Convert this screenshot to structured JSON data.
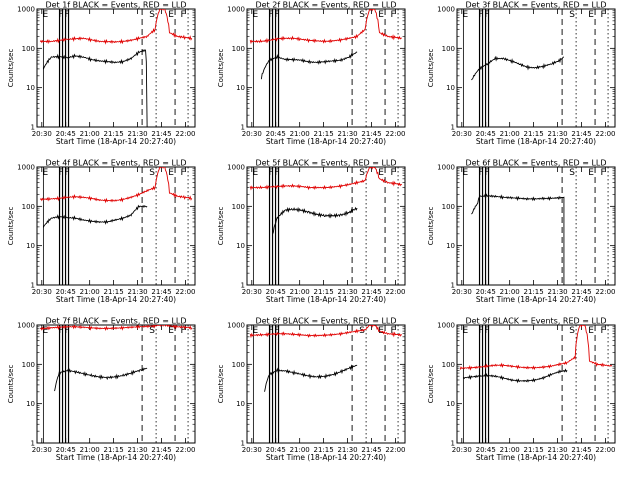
{
  "figure": {
    "xlabel": "Start Time (18-Apr-14 20:27:40)",
    "ylabel": "Counts/sec",
    "xticks": [
      "20:30",
      "20:45",
      "21:00",
      "21:15",
      "21:30",
      "21:45",
      "22:00"
    ],
    "yticks": [
      "1",
      "10",
      "100",
      "1000"
    ],
    "colors": {
      "events": "#000000",
      "lld": "#e00000"
    }
  },
  "chart_data": [
    {
      "type": "line",
      "title": "Det 1f BLACK = Events, RED = LLD",
      "xlabel": "Start Time (18-Apr-14 20:27:40)",
      "ylabel": "Counts/sec",
      "yscale": "log",
      "xlim": [
        "20:27",
        "22:06"
      ],
      "ylim": [
        1,
        1000
      ],
      "markers": {
        "E1": "20:31",
        "F1": "20:43",
        "S": "21:41",
        "E2": "21:51",
        "F2": "21:51"
      },
      "series": [
        {
          "name": "Events",
          "x": [
            "20:31",
            "20:36",
            "20:41",
            "20:46",
            "20:51",
            "20:56",
            "21:01",
            "21:06",
            "21:11",
            "21:16",
            "21:21",
            "21:26",
            "21:31",
            "21:35",
            "21:36"
          ],
          "values": [
            30,
            60,
            62,
            58,
            64,
            60,
            52,
            48,
            46,
            44,
            46,
            55,
            80,
            90,
            1
          ]
        },
        {
          "name": "LLD",
          "x": [
            "20:29",
            "20:36",
            "20:41",
            "20:46",
            "20:51",
            "20:56",
            "21:01",
            "21:06",
            "21:11",
            "21:16",
            "21:21",
            "21:26",
            "21:31",
            "21:36",
            "21:41",
            "21:44",
            "21:47",
            "21:50",
            "21:55",
            "22:00",
            "22:04"
          ],
          "values": [
            150,
            150,
            160,
            170,
            175,
            180,
            165,
            150,
            148,
            146,
            150,
            160,
            180,
            200,
            300,
            1000,
            1000,
            250,
            200,
            190,
            180
          ]
        }
      ]
    },
    {
      "type": "line",
      "title": "Det 2f BLACK = Events, RED = LLD",
      "xlabel": "Start Time (18-Apr-14 20:27:40)",
      "ylabel": "Counts/sec",
      "yscale": "log",
      "xlim": [
        "20:27",
        "22:06"
      ],
      "ylim": [
        1,
        1000
      ],
      "markers": {
        "E1": "20:31",
        "F1": "20:43",
        "S": "21:41",
        "E2": "21:51",
        "F2": "21:51"
      },
      "series": [
        {
          "name": "Events",
          "x": [
            "20:36",
            "20:41",
            "20:46",
            "20:51",
            "20:56",
            "21:01",
            "21:06",
            "21:11",
            "21:16",
            "21:21",
            "21:26",
            "21:31",
            "21:36"
          ],
          "values": [
            18,
            50,
            60,
            52,
            52,
            50,
            45,
            44,
            46,
            48,
            50,
            60,
            80
          ]
        },
        {
          "name": "LLD",
          "x": [
            "20:29",
            "20:36",
            "20:41",
            "20:46",
            "20:51",
            "20:56",
            "21:01",
            "21:06",
            "21:11",
            "21:16",
            "21:21",
            "21:26",
            "21:31",
            "21:36",
            "21:41",
            "21:44",
            "21:47",
            "21:50",
            "21:55",
            "22:00",
            "22:04"
          ],
          "values": [
            150,
            150,
            160,
            175,
            180,
            180,
            170,
            160,
            155,
            150,
            155,
            165,
            180,
            200,
            300,
            1000,
            1000,
            250,
            200,
            190,
            180
          ]
        }
      ]
    },
    {
      "type": "line",
      "title": "Det 3f BLACK = Events, RED = LLD",
      "xlabel": "Start Time (18-Apr-14 20:27:40)",
      "ylabel": "Counts/sec",
      "yscale": "log",
      "xlim": [
        "20:27",
        "22:06"
      ],
      "ylim": [
        1,
        1000
      ],
      "markers": {
        "E1": "20:31",
        "F1": "20:43",
        "S": "21:41",
        "E2": "21:51",
        "F2": "21:51"
      },
      "series": [
        {
          "name": "Events",
          "x": [
            "20:36",
            "20:41",
            "20:46",
            "20:51",
            "20:56",
            "21:01",
            "21:06",
            "21:11",
            "21:16",
            "21:21",
            "21:26",
            "21:31",
            "21:34"
          ],
          "values": [
            15,
            30,
            40,
            55,
            55,
            48,
            40,
            33,
            32,
            35,
            40,
            48,
            60
          ]
        }
      ]
    },
    {
      "type": "line",
      "title": "Det 4f BLACK = Events, RED = LLD",
      "xlabel": "Start Time (18-Apr-14 20:27:40)",
      "ylabel": "Counts/sec",
      "yscale": "log",
      "xlim": [
        "20:27",
        "22:06"
      ],
      "ylim": [
        1,
        1000
      ],
      "markers": {
        "E1": "20:31",
        "F1": "20:43",
        "S": "21:41",
        "E2": "21:51",
        "F2": "21:51"
      },
      "series": [
        {
          "name": "Events",
          "x": [
            "20:31",
            "20:36",
            "20:41",
            "20:46",
            "20:51",
            "20:56",
            "21:01",
            "21:06",
            "21:11",
            "21:16",
            "21:21",
            "21:26",
            "21:31",
            "21:36"
          ],
          "values": [
            30,
            50,
            55,
            52,
            50,
            45,
            42,
            40,
            40,
            45,
            50,
            60,
            100,
            100
          ]
        },
        {
          "name": "LLD",
          "x": [
            "20:29",
            "20:36",
            "20:41",
            "20:46",
            "20:51",
            "20:56",
            "21:01",
            "21:06",
            "21:11",
            "21:16",
            "21:21",
            "21:26",
            "21:31",
            "21:36",
            "21:41",
            "21:44",
            "21:47",
            "21:50",
            "21:55",
            "22:00",
            "22:04"
          ],
          "values": [
            150,
            155,
            160,
            170,
            175,
            170,
            160,
            145,
            140,
            140,
            150,
            170,
            200,
            250,
            300,
            1000,
            1000,
            220,
            180,
            170,
            160
          ]
        }
      ]
    },
    {
      "type": "line",
      "title": "Det 5f BLACK = Events, RED = LLD",
      "xlabel": "Start Time (18-Apr-14 20:27:40)",
      "ylabel": "Counts/sec",
      "yscale": "log",
      "xlim": [
        "20:27",
        "22:06"
      ],
      "ylim": [
        1,
        1000
      ],
      "markers": {
        "E1": "20:31",
        "F1": "20:43",
        "S": "21:41",
        "E2": "21:51",
        "F2": "21:51"
      },
      "series": [
        {
          "name": "Events",
          "x": [
            "20:43",
            "20:46",
            "20:51",
            "20:56",
            "21:01",
            "21:06",
            "21:11",
            "21:16",
            "21:21",
            "21:26",
            "21:31",
            "21:36"
          ],
          "values": [
            18,
            50,
            80,
            85,
            80,
            70,
            62,
            58,
            58,
            60,
            70,
            90
          ]
        },
        {
          "name": "LLD",
          "x": [
            "20:29",
            "20:36",
            "20:41",
            "20:46",
            "20:51",
            "20:56",
            "21:01",
            "21:06",
            "21:11",
            "21:16",
            "21:21",
            "21:26",
            "21:31",
            "21:36",
            "21:41",
            "21:44",
            "21:47",
            "21:50",
            "21:55",
            "22:00",
            "22:04"
          ],
          "values": [
            300,
            300,
            310,
            320,
            330,
            330,
            320,
            300,
            300,
            300,
            310,
            330,
            360,
            400,
            450,
            1000,
            1000,
            500,
            400,
            380,
            350
          ]
        }
      ]
    },
    {
      "type": "line",
      "title": "Det 6f BLACK = Events, RED = LLD",
      "xlabel": "Start Time (18-Apr-14 20:27:40)",
      "ylabel": "Counts/sec",
      "yscale": "log",
      "xlim": [
        "20:27",
        "22:06"
      ],
      "ylim": [
        1,
        1000
      ],
      "markers": {
        "E1": "20:31",
        "F1": "20:43",
        "S": "21:41",
        "E2": "21:51",
        "F2": "21:51"
      },
      "series": [
        {
          "name": "Events",
          "x": [
            "20:36",
            "20:40",
            "20:41",
            "20:46",
            "20:51",
            "20:56",
            "21:01",
            "21:06",
            "21:11",
            "21:16",
            "21:21",
            "21:26",
            "21:31",
            "21:34",
            "21:34"
          ],
          "values": [
            60,
            120,
            180,
            185,
            180,
            170,
            165,
            160,
            155,
            155,
            158,
            160,
            165,
            170,
            1
          ]
        }
      ]
    },
    {
      "type": "line",
      "title": "Det 7f BLACK = Events, RED = LLD",
      "xlabel": "Start Time (18-Apr-14 20:27:40)",
      "ylabel": "Counts/sec",
      "yscale": "log",
      "xlim": [
        "20:27",
        "22:06"
      ],
      "ylim": [
        1,
        1000
      ],
      "markers": {
        "E1": "20:31",
        "F1": "20:43",
        "S": "21:41",
        "E2": "21:51",
        "F2": "21:51"
      },
      "series": [
        {
          "name": "Events",
          "x": [
            "20:38",
            "20:41",
            "20:46",
            "20:51",
            "20:56",
            "21:01",
            "21:06",
            "21:11",
            "21:16",
            "21:21",
            "21:26",
            "21:31",
            "21:36"
          ],
          "values": [
            20,
            60,
            70,
            65,
            58,
            52,
            48,
            46,
            48,
            52,
            60,
            70,
            80
          ]
        },
        {
          "name": "LLD",
          "x": [
            "20:29",
            "20:36",
            "20:41",
            "20:46",
            "20:51",
            "20:56",
            "21:01",
            "21:06",
            "21:11",
            "21:16",
            "21:21",
            "21:26",
            "21:31",
            "21:36",
            "21:41",
            "21:44",
            "21:47",
            "21:50",
            "21:55",
            "22:00",
            "22:04"
          ],
          "values": [
            800,
            850,
            880,
            900,
            900,
            880,
            850,
            820,
            820,
            830,
            850,
            880,
            900,
            920,
            950,
            1000,
            1000,
            950,
            900,
            880,
            850
          ]
        }
      ]
    },
    {
      "type": "line",
      "title": "Det 8f BLACK = Events, RED = LLD",
      "xlabel": "Start Time (18-Apr-14 20:27:40)",
      "ylabel": "Counts/sec",
      "yscale": "log",
      "xlim": [
        "20:27",
        "22:06"
      ],
      "ylim": [
        1,
        1000
      ],
      "markers": {
        "E1": "20:31",
        "F1": "20:43",
        "S": "21:41",
        "E2": "21:51",
        "F2": "21:51"
      },
      "series": [
        {
          "name": "Events",
          "x": [
            "20:38",
            "20:41",
            "20:46",
            "20:51",
            "20:56",
            "21:01",
            "21:06",
            "21:11",
            "21:16",
            "21:21",
            "21:26",
            "21:31",
            "21:36"
          ],
          "values": [
            20,
            55,
            70,
            68,
            62,
            56,
            50,
            48,
            50,
            55,
            65,
            80,
            95
          ]
        },
        {
          "name": "LLD",
          "x": [
            "20:29",
            "20:36",
            "20:41",
            "20:46",
            "20:51",
            "20:56",
            "21:01",
            "21:06",
            "21:11",
            "21:16",
            "21:21",
            "21:26",
            "21:31",
            "21:36",
            "21:41",
            "21:44",
            "21:47",
            "21:50",
            "21:55",
            "22:00",
            "22:04"
          ],
          "values": [
            550,
            560,
            580,
            600,
            600,
            580,
            560,
            540,
            540,
            550,
            570,
            600,
            650,
            700,
            750,
            1000,
            1000,
            700,
            600,
            580,
            550
          ]
        }
      ]
    },
    {
      "type": "line",
      "title": "Det 9f BLACK = Events, RED = LLD",
      "xlabel": "Start Time (18-Apr-14 20:27:40)",
      "ylabel": "Counts/sec",
      "yscale": "log",
      "xlim": [
        "20:27",
        "22:06"
      ],
      "ylim": [
        1,
        1000
      ],
      "markers": {
        "E1": "20:31",
        "F1": "20:43",
        "S": "21:41",
        "E2": "21:51",
        "F2": "21:51"
      },
      "series": [
        {
          "name": "Events",
          "x": [
            "20:31",
            "20:36",
            "20:41",
            "20:46",
            "20:51",
            "20:56",
            "21:01",
            "21:06",
            "21:11",
            "21:16",
            "21:21",
            "21:26",
            "21:31",
            "21:36"
          ],
          "values": [
            45,
            48,
            50,
            52,
            50,
            45,
            40,
            38,
            38,
            40,
            45,
            55,
            65,
            70
          ]
        },
        {
          "name": "LLD",
          "x": [
            "20:29",
            "20:36",
            "20:41",
            "20:46",
            "20:51",
            "20:56",
            "21:01",
            "21:06",
            "21:11",
            "21:16",
            "21:21",
            "21:26",
            "21:31",
            "21:36",
            "21:41",
            "21:44",
            "21:47",
            "21:50",
            "21:55",
            "22:00",
            "22:04"
          ],
          "values": [
            80,
            82,
            85,
            90,
            95,
            95,
            90,
            85,
            82,
            82,
            85,
            90,
            100,
            110,
            150,
            1000,
            1000,
            120,
            100,
            95,
            90
          ]
        }
      ]
    }
  ]
}
